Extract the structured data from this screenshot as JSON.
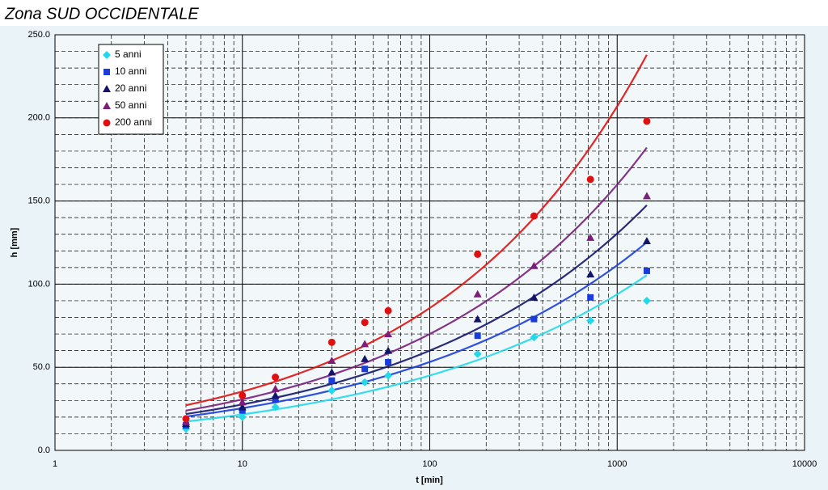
{
  "chart_data": {
    "type": "scatter",
    "title": "Zona SUD OCCIDENTALE",
    "x_label": "t [min]",
    "y_label": "h [mm]",
    "x": [
      5,
      10,
      15,
      30,
      45,
      60,
      180,
      360,
      720,
      1440
    ],
    "xlim": [
      1,
      10000
    ],
    "xticks": [
      1,
      10,
      100,
      1000,
      10000
    ],
    "x_log": true,
    "ylim": [
      0,
      250
    ],
    "yticks": [
      {
        "value": 0,
        "label": "0.0"
      },
      {
        "value": 50,
        "label": "50.0"
      },
      {
        "value": 100,
        "label": "100.0"
      },
      {
        "value": 150,
        "label": "150.0"
      },
      {
        "value": 200,
        "label": "200.0"
      },
      {
        "value": 250,
        "label": "250.0"
      }
    ],
    "grid": true,
    "minor_grid": true,
    "trendline": "power",
    "legend": "upper left",
    "series": [
      {
        "name": "5 anni",
        "color": "#22d8ea",
        "marker": "diamond",
        "values": [
          13,
          20,
          26,
          36,
          41,
          45,
          58,
          68,
          78,
          90
        ]
      },
      {
        "name": "10 anni",
        "color": "#1a3cdc",
        "marker": "square",
        "values": [
          15,
          24,
          30.5,
          42,
          49,
          53,
          69,
          79,
          92,
          108
        ]
      },
      {
        "name": "20 anni",
        "color": "#14146a",
        "marker": "triangle",
        "values": [
          16,
          26,
          33,
          47,
          55,
          60,
          79,
          92,
          106,
          126
        ]
      },
      {
        "name": "50 anni",
        "color": "#7a1e7a",
        "marker": "triangle",
        "values": [
          17,
          29,
          37,
          54,
          64,
          70,
          94,
          111,
          128,
          153
        ]
      },
      {
        "name": "200 anni",
        "color": "#e01010",
        "marker": "circle",
        "values": [
          19,
          33,
          44,
          65,
          77,
          84,
          118,
          141,
          163,
          198
        ]
      }
    ]
  }
}
